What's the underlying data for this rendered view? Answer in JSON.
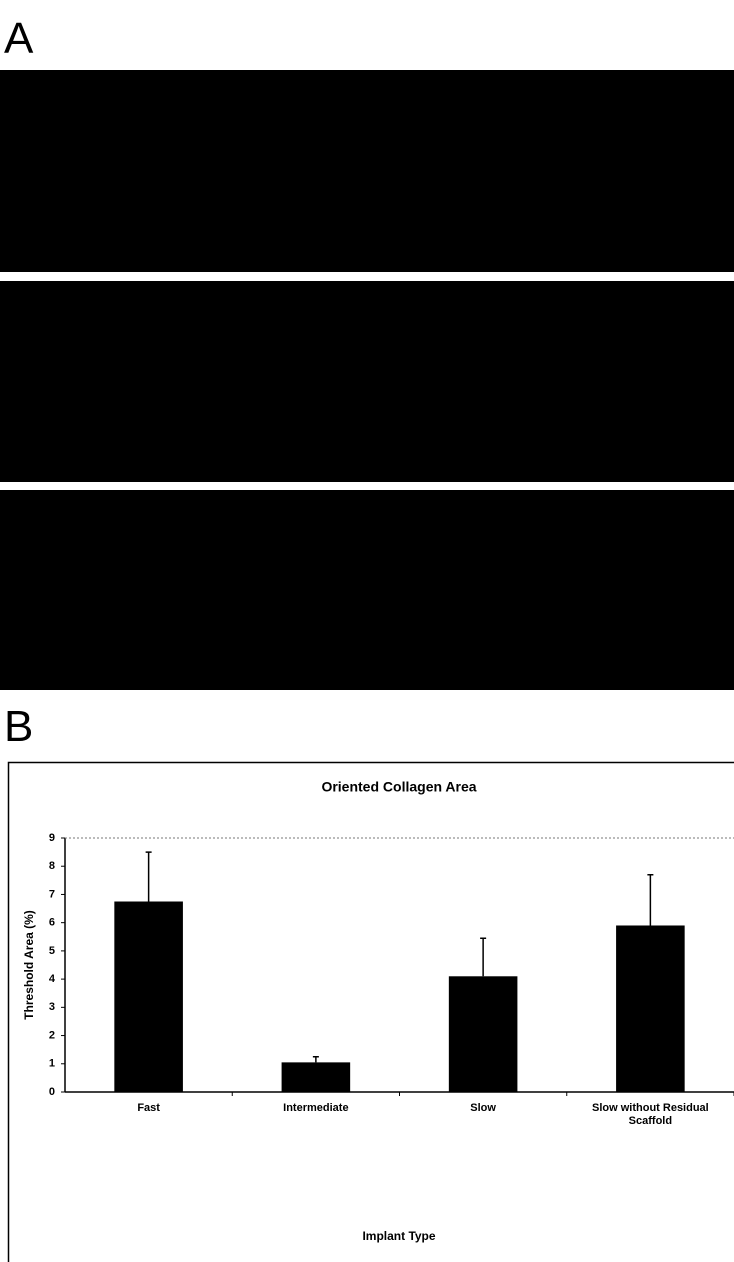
{
  "panels": {
    "a_label": "A",
    "b_label": "B"
  },
  "chart_data": {
    "type": "bar",
    "title": "Oriented Collagen Area",
    "y_label": "Threshold Area (%)",
    "x_label": "Implant Type",
    "categories": [
      "Fast",
      "Intermediate",
      "Slow",
      "Slow without Residual Scaffold"
    ],
    "values": [
      6.75,
      1.05,
      4.1,
      5.9
    ],
    "errors": [
      1.75,
      0.2,
      1.35,
      1.8
    ],
    "color": "#000000",
    "ylim": [
      0,
      9
    ],
    "yticks": [
      0,
      1,
      2,
      3,
      4,
      5,
      6,
      7,
      8,
      9
    ],
    "grid": false
  }
}
